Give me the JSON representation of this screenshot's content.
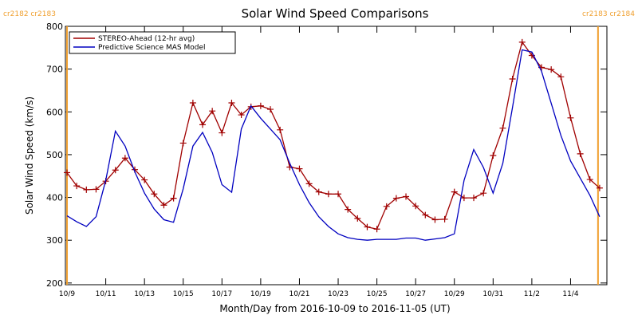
{
  "chart_data": {
    "type": "line",
    "title": "Solar Wind Speed Comparisons",
    "x_label": "Month/Day from 2016-10-09 to 2016-11-05 (UT)",
    "y_label": "Solar Wind Speed (km/s)",
    "x": [
      "2016-10-09T00:00",
      "2016-10-09T12:00",
      "2016-10-10T00:00",
      "2016-10-10T12:00",
      "2016-10-11T00:00",
      "2016-10-11T12:00",
      "2016-10-12T00:00",
      "2016-10-12T12:00",
      "2016-10-13T00:00",
      "2016-10-13T12:00",
      "2016-10-14T00:00",
      "2016-10-14T12:00",
      "2016-10-15T00:00",
      "2016-10-15T12:00",
      "2016-10-16T00:00",
      "2016-10-16T12:00",
      "2016-10-17T00:00",
      "2016-10-17T12:00",
      "2016-10-18T00:00",
      "2016-10-18T12:00",
      "2016-10-19T00:00",
      "2016-10-19T12:00",
      "2016-10-20T00:00",
      "2016-10-20T12:00",
      "2016-10-21T00:00",
      "2016-10-21T12:00",
      "2016-10-22T00:00",
      "2016-10-22T12:00",
      "2016-10-23T00:00",
      "2016-10-23T12:00",
      "2016-10-24T00:00",
      "2016-10-24T12:00",
      "2016-10-25T00:00",
      "2016-10-25T12:00",
      "2016-10-26T00:00",
      "2016-10-26T12:00",
      "2016-10-27T00:00",
      "2016-10-27T12:00",
      "2016-10-28T00:00",
      "2016-10-28T12:00",
      "2016-10-29T00:00",
      "2016-10-29T12:00",
      "2016-10-30T00:00",
      "2016-10-30T12:00",
      "2016-10-31T00:00",
      "2016-10-31T12:00",
      "2016-11-01T00:00",
      "2016-11-01T12:00",
      "2016-11-02T00:00",
      "2016-11-02T12:00",
      "2016-11-03T00:00",
      "2016-11-03T12:00",
      "2016-11-04T00:00",
      "2016-11-04T12:00",
      "2016-11-05T00:00",
      "2016-11-05T12:00"
    ],
    "series": [
      {
        "name": "STEREO-Ahead (12-hr avg)",
        "color": "#a00000",
        "marker": "plus",
        "values": [
          458,
          427,
          418,
          419,
          438,
          464,
          492,
          465,
          441,
          408,
          382,
          398,
          527,
          621,
          570,
          602,
          551,
          621,
          593,
          612,
          614,
          606,
          558,
          471,
          467,
          432,
          413,
          408,
          408,
          372,
          351,
          331,
          326,
          379,
          398,
          402,
          380,
          359,
          348,
          349,
          413,
          399,
          399,
          410,
          498,
          562,
          677,
          763,
          732,
          704,
          699,
          682,
          586,
          502,
          442,
          422
        ]
      },
      {
        "name": "Predictive Science MAS Model",
        "color": "#0000c0",
        "values": [
          357,
          343,
          332,
          355,
          440,
          555,
          520,
          460,
          410,
          373,
          348,
          342,
          420,
          520,
          552,
          505,
          430,
          412,
          560,
          614,
          585,
          560,
          535,
          480,
          430,
          388,
          355,
          332,
          315,
          306,
          302,
          300,
          302,
          302,
          302,
          305,
          305,
          300,
          303,
          306,
          315,
          440,
          512,
          470,
          410,
          480,
          610,
          745,
          740,
          695,
          620,
          545,
          485,
          445,
          405,
          355
        ]
      }
    ],
    "xlim": [
      "2016-10-08T22:00",
      "2016-11-05T21:00"
    ],
    "xticks": [
      {
        "value": "2016-10-09T00:00",
        "label": "10/9"
      },
      {
        "value": "2016-10-11T00:00",
        "label": "10/11"
      },
      {
        "value": "2016-10-13T00:00",
        "label": "10/13"
      },
      {
        "value": "2016-10-15T00:00",
        "label": "10/15"
      },
      {
        "value": "2016-10-17T00:00",
        "label": "10/17"
      },
      {
        "value": "2016-10-19T00:00",
        "label": "10/19"
      },
      {
        "value": "2016-10-21T00:00",
        "label": "10/21"
      },
      {
        "value": "2016-10-23T00:00",
        "label": "10/23"
      },
      {
        "value": "2016-10-25T00:00",
        "label": "10/25"
      },
      {
        "value": "2016-10-27T00:00",
        "label": "10/27"
      },
      {
        "value": "2016-10-29T00:00",
        "label": "10/29"
      },
      {
        "value": "2016-10-31T00:00",
        "label": "10/31"
      },
      {
        "value": "2016-11-02T00:00",
        "label": "11/2"
      },
      {
        "value": "2016-11-04T00:00",
        "label": "11/4"
      }
    ],
    "ylim": [
      196,
      800
    ],
    "yticks": [
      200,
      300,
      400,
      500,
      600,
      700,
      800
    ],
    "legend": "upper left",
    "annotations": [
      {
        "text": "cr2182 cr2183",
        "x": "2016-10-09T00:00",
        "color": "#f0a030",
        "align": "left"
      },
      {
        "text": "cr2183 cr2184",
        "x": "2016-11-05T10:00",
        "color": "#f0a030",
        "align": "right"
      }
    ]
  }
}
